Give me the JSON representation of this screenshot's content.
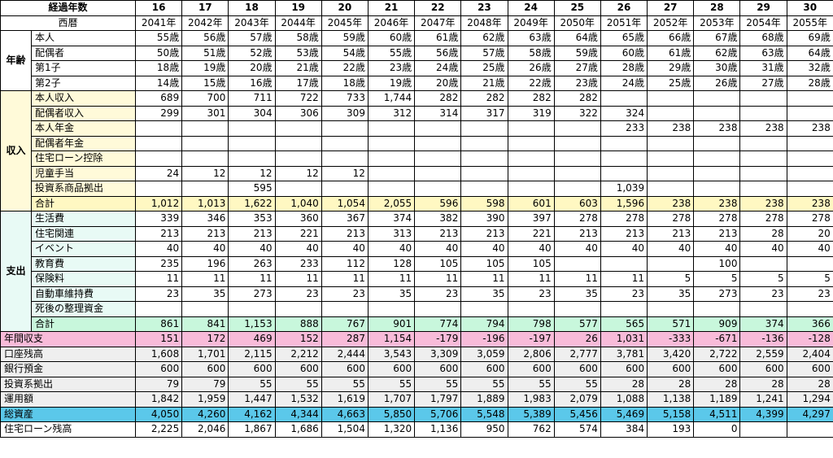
{
  "header": {
    "year_label": "経過年数",
    "calendar_label": "西暦",
    "years": [
      "16",
      "17",
      "18",
      "19",
      "20",
      "21",
      "22",
      "23",
      "24",
      "25",
      "26",
      "27",
      "28",
      "29",
      "30"
    ],
    "calendar": [
      "2041年",
      "2042年",
      "2043年",
      "2044年",
      "2045年",
      "2046年",
      "2047年",
      "2048年",
      "2049年",
      "2050年",
      "2051年",
      "2052年",
      "2053年",
      "2054年",
      "2055年"
    ]
  },
  "groups": {
    "age": {
      "title": "年齢",
      "rows": [
        {
          "label": "本人",
          "values": [
            "55歳",
            "56歳",
            "57歳",
            "58歳",
            "59歳",
            "60歳",
            "61歳",
            "62歳",
            "63歳",
            "64歳",
            "65歳",
            "66歳",
            "67歳",
            "68歳",
            "69歳"
          ]
        },
        {
          "label": "配偶者",
          "values": [
            "50歳",
            "51歳",
            "52歳",
            "53歳",
            "54歳",
            "55歳",
            "56歳",
            "57歳",
            "58歳",
            "59歳",
            "60歳",
            "61歳",
            "62歳",
            "63歳",
            "64歳"
          ]
        },
        {
          "label": "第1子",
          "values": [
            "18歳",
            "19歳",
            "20歳",
            "21歳",
            "22歳",
            "23歳",
            "24歳",
            "25歳",
            "26歳",
            "27歳",
            "28歳",
            "29歳",
            "30歳",
            "31歳",
            "32歳"
          ]
        },
        {
          "label": "第2子",
          "values": [
            "14歳",
            "15歳",
            "16歳",
            "17歳",
            "18歳",
            "19歳",
            "20歳",
            "21歳",
            "22歳",
            "23歳",
            "24歳",
            "25歳",
            "26歳",
            "27歳",
            "28歳"
          ]
        }
      ]
    },
    "income": {
      "title": "収入",
      "rows": [
        {
          "label": "本人収入",
          "values": [
            "689",
            "700",
            "711",
            "722",
            "733",
            "1,744",
            "282",
            "282",
            "282",
            "282",
            "",
            "",
            "",
            "",
            ""
          ]
        },
        {
          "label": "配偶者収入",
          "values": [
            "299",
            "301",
            "304",
            "306",
            "309",
            "312",
            "314",
            "317",
            "319",
            "322",
            "324",
            "",
            "",
            "",
            ""
          ]
        },
        {
          "label": "本人年金",
          "values": [
            "",
            "",
            "",
            "",
            "",
            "",
            "",
            "",
            "",
            "",
            "233",
            "238",
            "238",
            "238",
            "238"
          ]
        },
        {
          "label": "配偶者年金",
          "values": [
            "",
            "",
            "",
            "",
            "",
            "",
            "",
            "",
            "",
            "",
            "",
            "",
            "",
            "",
            ""
          ]
        },
        {
          "label": "住宅ローン控除",
          "values": [
            "",
            "",
            "",
            "",
            "",
            "",
            "",
            "",
            "",
            "",
            "",
            "",
            "",
            "",
            ""
          ]
        },
        {
          "label": "児童手当",
          "values": [
            "24",
            "12",
            "12",
            "12",
            "12",
            "",
            "",
            "",
            "",
            "",
            "",
            "",
            "",
            "",
            ""
          ]
        },
        {
          "label": "投資系商品拠出",
          "values": [
            "",
            "",
            "595",
            "",
            "",
            "",
            "",
            "",
            "",
            "",
            "1,039",
            "",
            "",
            "",
            ""
          ]
        }
      ],
      "total": {
        "label": "合計",
        "values": [
          "1,012",
          "1,013",
          "1,622",
          "1,040",
          "1,054",
          "2,055",
          "596",
          "598",
          "601",
          "603",
          "1,596",
          "238",
          "238",
          "238",
          "238"
        ]
      }
    },
    "expense": {
      "title": "支出",
      "rows": [
        {
          "label": "生活費",
          "values": [
            "339",
            "346",
            "353",
            "360",
            "367",
            "374",
            "382",
            "390",
            "397",
            "278",
            "278",
            "278",
            "278",
            "278",
            "278"
          ]
        },
        {
          "label": "住宅関連",
          "values": [
            "213",
            "213",
            "213",
            "221",
            "213",
            "313",
            "213",
            "213",
            "221",
            "213",
            "213",
            "213",
            "213",
            "28",
            "20"
          ]
        },
        {
          "label": "イベント",
          "values": [
            "40",
            "40",
            "40",
            "40",
            "40",
            "40",
            "40",
            "40",
            "40",
            "40",
            "40",
            "40",
            "40",
            "40",
            "40"
          ]
        },
        {
          "label": "教育費",
          "values": [
            "235",
            "196",
            "263",
            "233",
            "112",
            "128",
            "105",
            "105",
            "105",
            "",
            "",
            "",
            "100",
            "",
            ""
          ]
        },
        {
          "label": "保険料",
          "values": [
            "11",
            "11",
            "11",
            "11",
            "11",
            "11",
            "11",
            "11",
            "11",
            "11",
            "11",
            "5",
            "5",
            "5",
            "5"
          ]
        },
        {
          "label": "自動車維持費",
          "values": [
            "23",
            "35",
            "273",
            "23",
            "23",
            "35",
            "23",
            "35",
            "23",
            "35",
            "23",
            "35",
            "273",
            "23",
            "23"
          ]
        },
        {
          "label": "死後の整理資金",
          "values": [
            "",
            "",
            "",
            "",
            "",
            "",
            "",
            "",
            "",
            "",
            "",
            "",
            "",
            "",
            ""
          ]
        }
      ],
      "total": {
        "label": "合計",
        "values": [
          "861",
          "841",
          "1,153",
          "888",
          "767",
          "901",
          "774",
          "794",
          "798",
          "577",
          "565",
          "571",
          "909",
          "374",
          "366"
        ]
      }
    }
  },
  "summary": {
    "balance": {
      "label": "年間収支",
      "values": [
        "151",
        "172",
        "469",
        "152",
        "287",
        "1,154",
        "-179",
        "-196",
        "-197",
        "26",
        "1,031",
        "-333",
        "-671",
        "-136",
        "-128"
      ]
    },
    "account": {
      "label": "口座残高",
      "values": [
        "1,608",
        "1,701",
        "2,115",
        "2,212",
        "2,444",
        "3,543",
        "3,309",
        "3,059",
        "2,806",
        "2,777",
        "3,781",
        "3,420",
        "2,722",
        "2,559",
        "2,404"
      ]
    },
    "deposit": {
      "label": "銀行預金",
      "values": [
        "600",
        "600",
        "600",
        "600",
        "600",
        "600",
        "600",
        "600",
        "600",
        "600",
        "600",
        "600",
        "600",
        "600",
        "600"
      ]
    },
    "invest": {
      "label": "投資系拠出",
      "values": [
        "79",
        "79",
        "55",
        "55",
        "55",
        "55",
        "55",
        "55",
        "55",
        "55",
        "28",
        "28",
        "28",
        "28",
        "28"
      ]
    },
    "managed": {
      "label": "運用額",
      "values": [
        "1,842",
        "1,959",
        "1,447",
        "1,532",
        "1,619",
        "1,707",
        "1,797",
        "1,889",
        "1,983",
        "2,079",
        "1,088",
        "1,138",
        "1,189",
        "1,241",
        "1,294"
      ]
    },
    "total_assets": {
      "label": "総資産",
      "values": [
        "4,050",
        "4,260",
        "4,162",
        "4,344",
        "4,663",
        "5,850",
        "5,706",
        "5,548",
        "5,389",
        "5,456",
        "5,469",
        "5,158",
        "4,511",
        "4,399",
        "4,297"
      ]
    },
    "loan": {
      "label": "住宅ローン残高",
      "values": [
        "2,225",
        "2,046",
        "1,867",
        "1,686",
        "1,504",
        "1,320",
        "1,136",
        "950",
        "762",
        "574",
        "384",
        "193",
        "0",
        "",
        ""
      ]
    }
  }
}
